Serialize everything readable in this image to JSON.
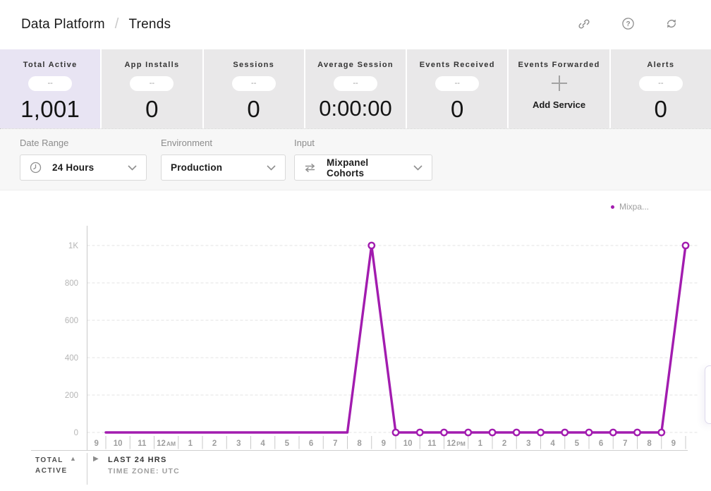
{
  "header": {
    "breadcrumb_root": "Data Platform",
    "breadcrumb_separator": "/",
    "breadcrumb_current": "Trends",
    "action_icons": [
      "link-icon",
      "question-circle-icon",
      "sync-icon"
    ]
  },
  "stats": {
    "cards": [
      {
        "label": "Total Active",
        "badge": "--",
        "value": "1,001",
        "selected": true
      },
      {
        "label": "App Installs",
        "badge": "--",
        "value": "0",
        "selected": false
      },
      {
        "label": "Sessions",
        "badge": "--",
        "value": "0",
        "selected": false
      },
      {
        "label": "Average Session",
        "badge": "--",
        "value": "0:00:00",
        "selected": false
      },
      {
        "label": "Events Received",
        "badge": "--",
        "value": "0",
        "selected": false
      },
      {
        "label": "Events Forwarded",
        "action_icon": "plus-icon",
        "action_label": "Add Service",
        "selected": false
      },
      {
        "label": "Alerts",
        "badge": "--",
        "value": "0",
        "selected": false
      }
    ]
  },
  "filters": {
    "date_range": {
      "label": "Date Range",
      "value": "24 Hours",
      "icon": "clock-icon"
    },
    "environment": {
      "label": "Environment",
      "value": "Production"
    },
    "input": {
      "label": "Input",
      "value": "Mixpanel Cohorts",
      "icon": "swap-arrows-icon"
    }
  },
  "chart_data": {
    "type": "line",
    "title": "",
    "legend": {
      "label": "Mixpa...",
      "position": "top-right"
    },
    "x_labels": [
      "9",
      "10",
      "11",
      "12AM",
      "1",
      "2",
      "3",
      "4",
      "5",
      "6",
      "7",
      "8",
      "9",
      "10",
      "11",
      "12PM",
      "1",
      "2",
      "3",
      "4",
      "5",
      "6",
      "7",
      "8",
      "9"
    ],
    "series": [
      {
        "name": "Mixpa...",
        "color": "#a21caf",
        "values": [
          0,
          0,
          0,
          0,
          0,
          0,
          0,
          0,
          0,
          0,
          0,
          1000,
          0,
          0,
          0,
          0,
          0,
          0,
          0,
          0,
          0,
          0,
          0,
          0,
          1000
        ],
        "markers_visible_from_index": 11
      }
    ],
    "y_ticks": [
      {
        "label": "0",
        "value": 0
      },
      {
        "label": "200",
        "value": 200
      },
      {
        "label": "400",
        "value": 400
      },
      {
        "label": "600",
        "value": 600
      },
      {
        "label": "800",
        "value": 800
      },
      {
        "label": "1K",
        "value": 1000
      }
    ],
    "ylim": [
      0,
      1100
    ],
    "grid": "horizontal-dashed"
  },
  "chart_footer": {
    "metric_line1": "TOTAL",
    "metric_line2": "ACTIVE",
    "sort_icon": "triangle-up-icon",
    "expand_icon": "triangle-right-icon",
    "range_label": "LAST 24 HRS",
    "timezone_label": "TIME ZONE: UTC"
  },
  "colors": {
    "series_purple": "#a21caf",
    "selected_card_bg": "#e8e4f3",
    "card_bg": "#e9e8e9",
    "filter_bar_bg": "#f7f7f7"
  }
}
